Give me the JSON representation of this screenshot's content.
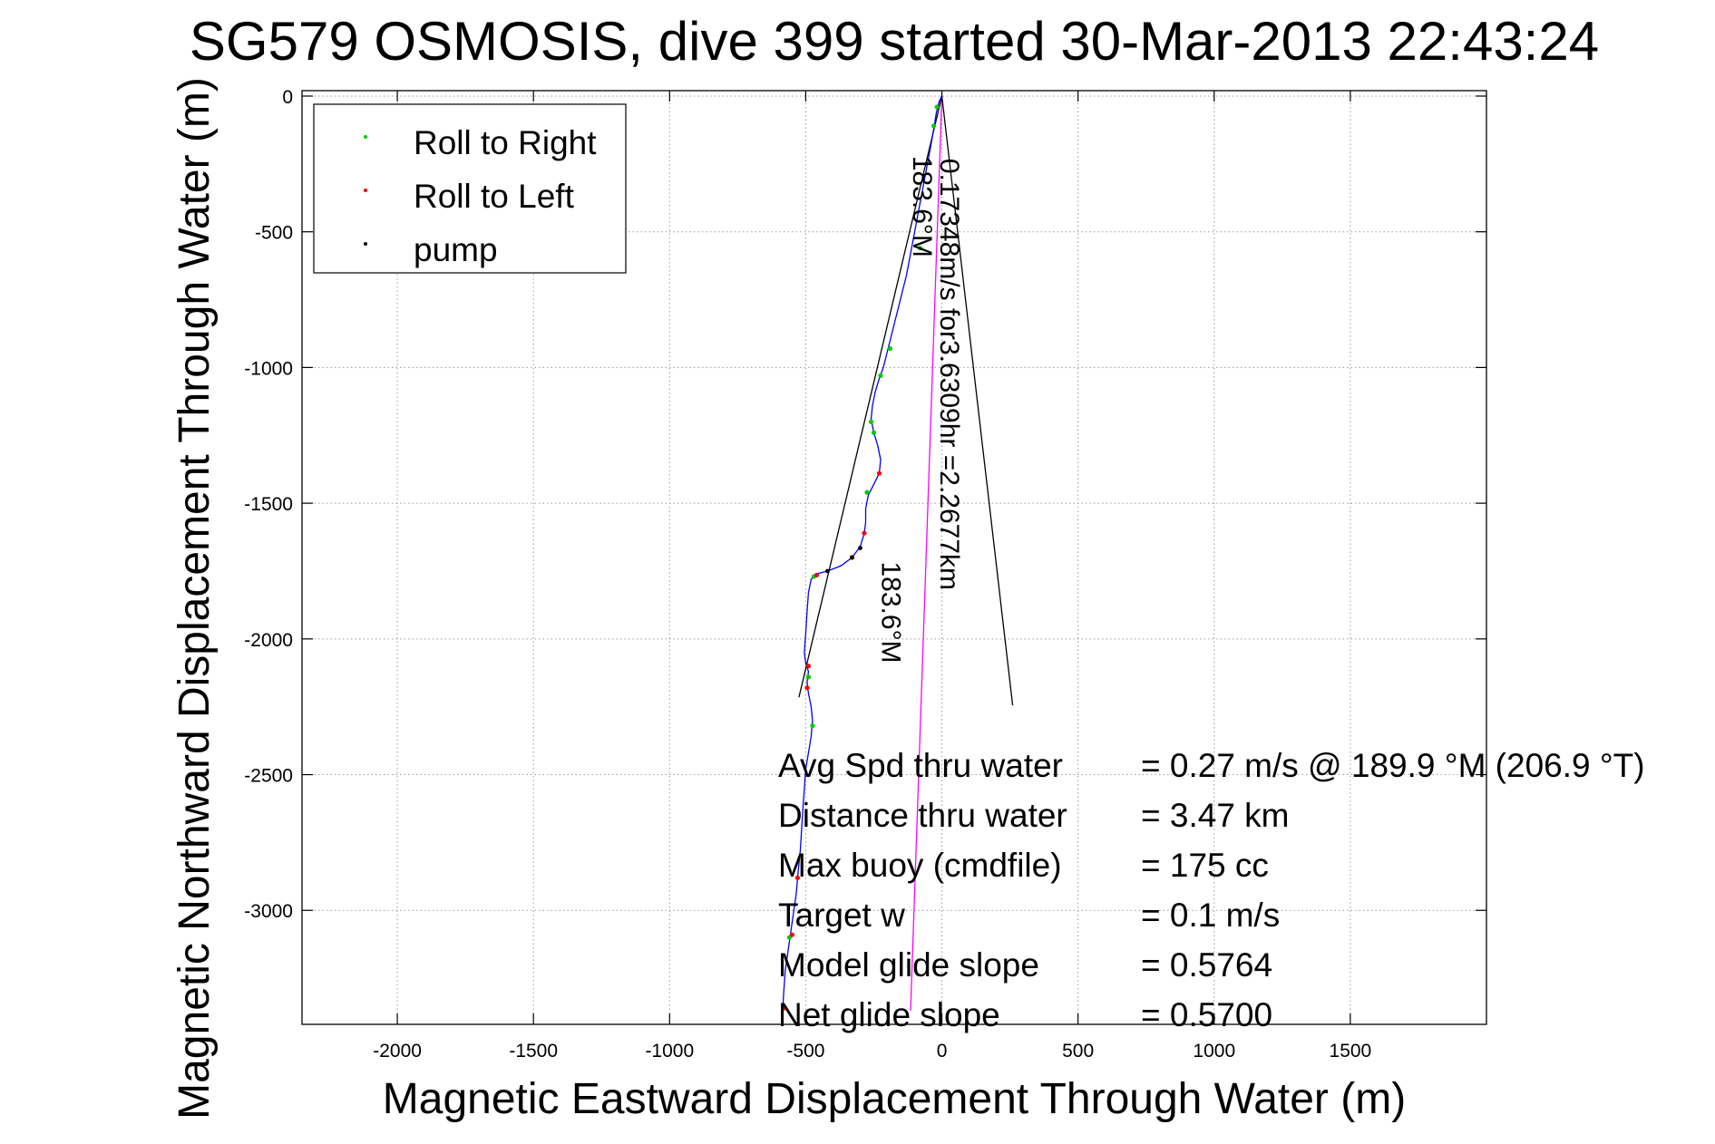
{
  "chart_data": {
    "type": "line",
    "title": "SG579 OSMOSIS, dive 399 started 30-Mar-2013 22:43:24",
    "xlabel": "Magnetic Eastward Displacement Through Water (m)",
    "ylabel": "Magnetic Northward Displacement Through Water (m)",
    "xlim": [
      -2350,
      2000
    ],
    "ylim": [
      -3420,
      20
    ],
    "xticks": [
      -2000,
      -1500,
      -1000,
      -500,
      0,
      500,
      1000,
      1500
    ],
    "yticks": [
      0,
      -500,
      -1000,
      -1500,
      -2000,
      -2500,
      -3000
    ],
    "grid": true,
    "legend_position": "top-left",
    "legend": [
      {
        "label": "Roll to Right",
        "color": "#00cc00"
      },
      {
        "label": "Roll to Left",
        "color": "#ff0000"
      },
      {
        "label": "pump",
        "color": "#000000"
      }
    ],
    "track": {
      "color": "#0000ff",
      "points": [
        [
          0,
          0
        ],
        [
          -10,
          -20
        ],
        [
          -20,
          -60
        ],
        [
          -28,
          -110
        ],
        [
          -40,
          -180
        ],
        [
          -55,
          -260
        ],
        [
          -70,
          -340
        ],
        [
          -85,
          -420
        ],
        [
          -100,
          -500
        ],
        [
          -115,
          -580
        ],
        [
          -130,
          -660
        ],
        [
          -150,
          -740
        ],
        [
          -170,
          -820
        ],
        [
          -190,
          -900
        ],
        [
          -205,
          -960
        ],
        [
          -215,
          -1000
        ],
        [
          -230,
          -1040
        ],
        [
          -245,
          -1090
        ],
        [
          -255,
          -1140
        ],
        [
          -260,
          -1190
        ],
        [
          -250,
          -1240
        ],
        [
          -235,
          -1290
        ],
        [
          -225,
          -1340
        ],
        [
          -230,
          -1390
        ],
        [
          -250,
          -1430
        ],
        [
          -270,
          -1470
        ],
        [
          -280,
          -1520
        ],
        [
          -280,
          -1570
        ],
        [
          -285,
          -1610
        ],
        [
          -300,
          -1660
        ],
        [
          -330,
          -1700
        ],
        [
          -370,
          -1730
        ],
        [
          -420,
          -1750
        ],
        [
          -460,
          -1760
        ],
        [
          -480,
          -1780
        ],
        [
          -490,
          -1830
        ],
        [
          -495,
          -1900
        ],
        [
          -500,
          -1980
        ],
        [
          -505,
          -2050
        ],
        [
          -500,
          -2090
        ],
        [
          -490,
          -2120
        ],
        [
          -495,
          -2160
        ],
        [
          -490,
          -2200
        ],
        [
          -480,
          -2250
        ],
        [
          -475,
          -2300
        ],
        [
          -480,
          -2360
        ],
        [
          -490,
          -2420
        ],
        [
          -500,
          -2480
        ],
        [
          -505,
          -2550
        ],
        [
          -510,
          -2620
        ],
        [
          -515,
          -2700
        ],
        [
          -520,
          -2780
        ],
        [
          -528,
          -2860
        ],
        [
          -535,
          -2940
        ],
        [
          -545,
          -3010
        ],
        [
          -555,
          -3080
        ],
        [
          -565,
          -3150
        ],
        [
          -575,
          -3220
        ],
        [
          -580,
          -3290
        ],
        [
          -585,
          -3370
        ]
      ]
    },
    "roll_right_points": [
      [
        -18,
        -40
      ],
      [
        -30,
        -110
      ],
      [
        -80,
        -560
      ],
      [
        -190,
        -930
      ],
      [
        -225,
        -1030
      ],
      [
        -260,
        -1200
      ],
      [
        -250,
        -1240
      ],
      [
        -275,
        -1460
      ],
      [
        -470,
        -1770
      ],
      [
        -490,
        -2140
      ],
      [
        -475,
        -2320
      ],
      [
        -560,
        -3100
      ]
    ],
    "roll_left_points": [
      [
        -230,
        -1390
      ],
      [
        -285,
        -1610
      ],
      [
        -330,
        -1700
      ],
      [
        -460,
        -1765
      ],
      [
        -490,
        -2100
      ],
      [
        -495,
        -2180
      ],
      [
        -530,
        -2880
      ],
      [
        -550,
        -3090
      ],
      [
        -580,
        -3360
      ]
    ],
    "pump_points": [
      [
        -420,
        -1750
      ],
      [
        -300,
        -1665
      ],
      [
        -330,
        -1700
      ]
    ],
    "reference_lines": [
      {
        "from": [
          0,
          0
        ],
        "to": [
          -525,
          -2215
        ],
        "color": "#000000"
      },
      {
        "from": [
          0,
          0
        ],
        "to": [
          260,
          -2245
        ],
        "color": "#000000"
      },
      {
        "from": [
          0,
          0
        ],
        "to": [
          -115,
          -3370
        ],
        "color": "#ff00ff"
      }
    ],
    "annotations": [
      {
        "text": "0.17348m/s for3.6309hr =2.2677km",
        "at": [
          -5,
          -230
        ],
        "rotation": 90
      },
      {
        "text": "183.6°M",
        "at": [
          -105,
          -220
        ],
        "rotation": 90
      },
      {
        "text": "183.6°M",
        "at": [
          -220,
          -1715
        ],
        "rotation": 90
      }
    ],
    "stats": [
      {
        "label": "Avg Spd thru water",
        "value": "=  0.27 m/s @ 189.9 °M (206.9 °T)"
      },
      {
        "label": "Distance thru water",
        "value": "=  3.47 km"
      },
      {
        "label": "Max buoy (cmdfile)",
        "value": "= 175 cc"
      },
      {
        "label": "Target w",
        "value": "= 0.1 m/s"
      },
      {
        "label": "Model glide slope",
        "value": "= 0.5764"
      },
      {
        "label": "Net glide slope",
        "value": "= 0.5700"
      }
    ]
  }
}
